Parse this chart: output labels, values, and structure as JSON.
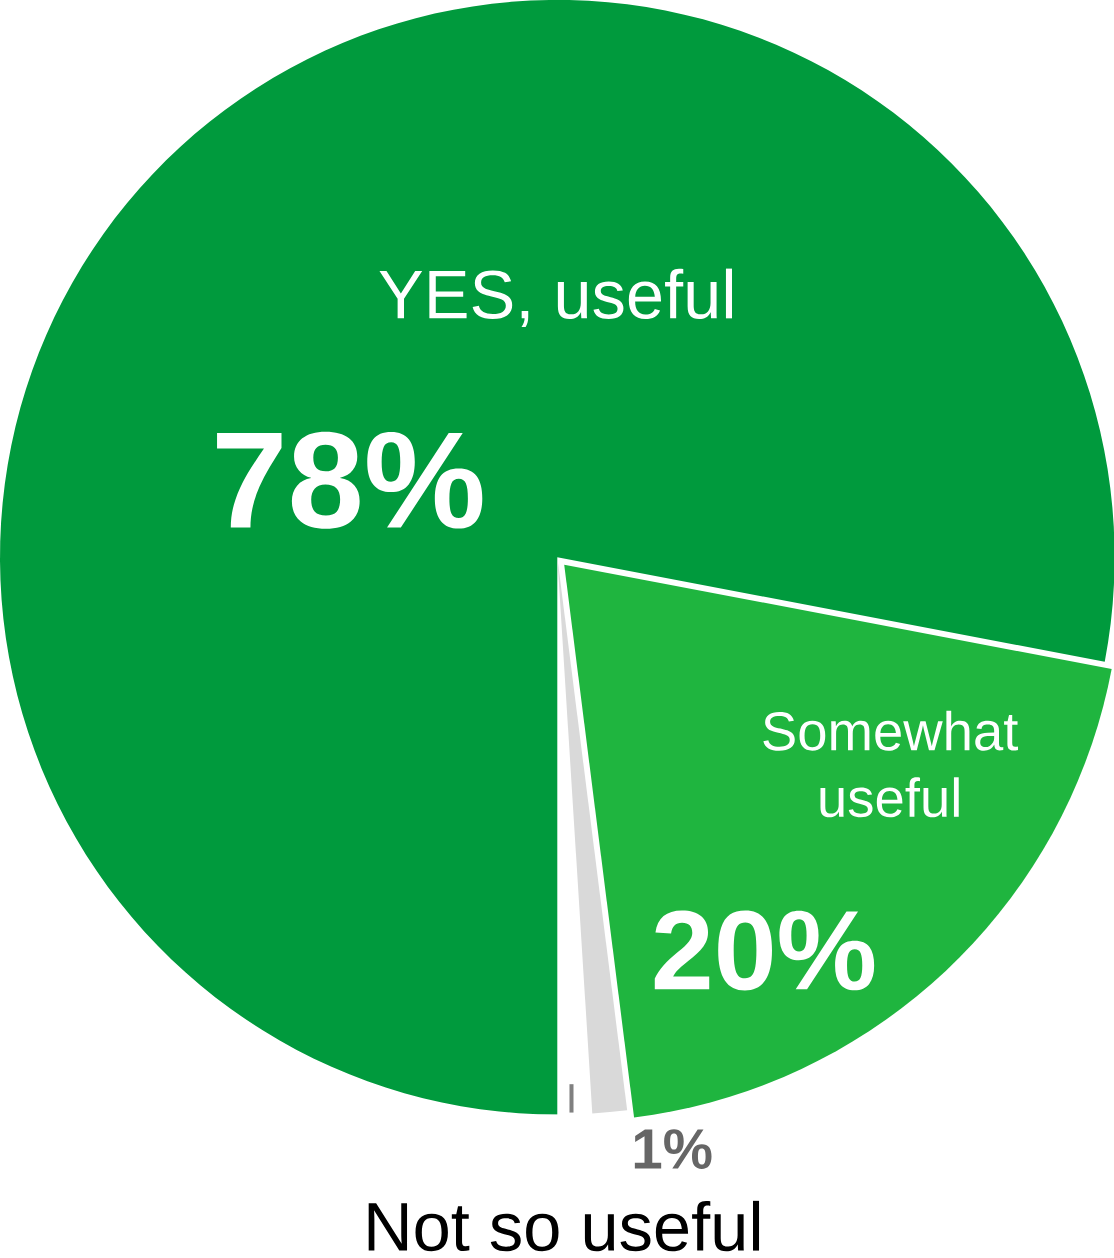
{
  "chart_data": {
    "type": "pie",
    "categories": [
      "YES, useful",
      "Somewhat useful",
      "Not so useful"
    ],
    "values": [
      78,
      20,
      1
    ],
    "value_labels": [
      "78%",
      "20%",
      "1%"
    ],
    "colors": [
      "#009a3d",
      "#1fb53f",
      "#d9d9d9"
    ]
  }
}
